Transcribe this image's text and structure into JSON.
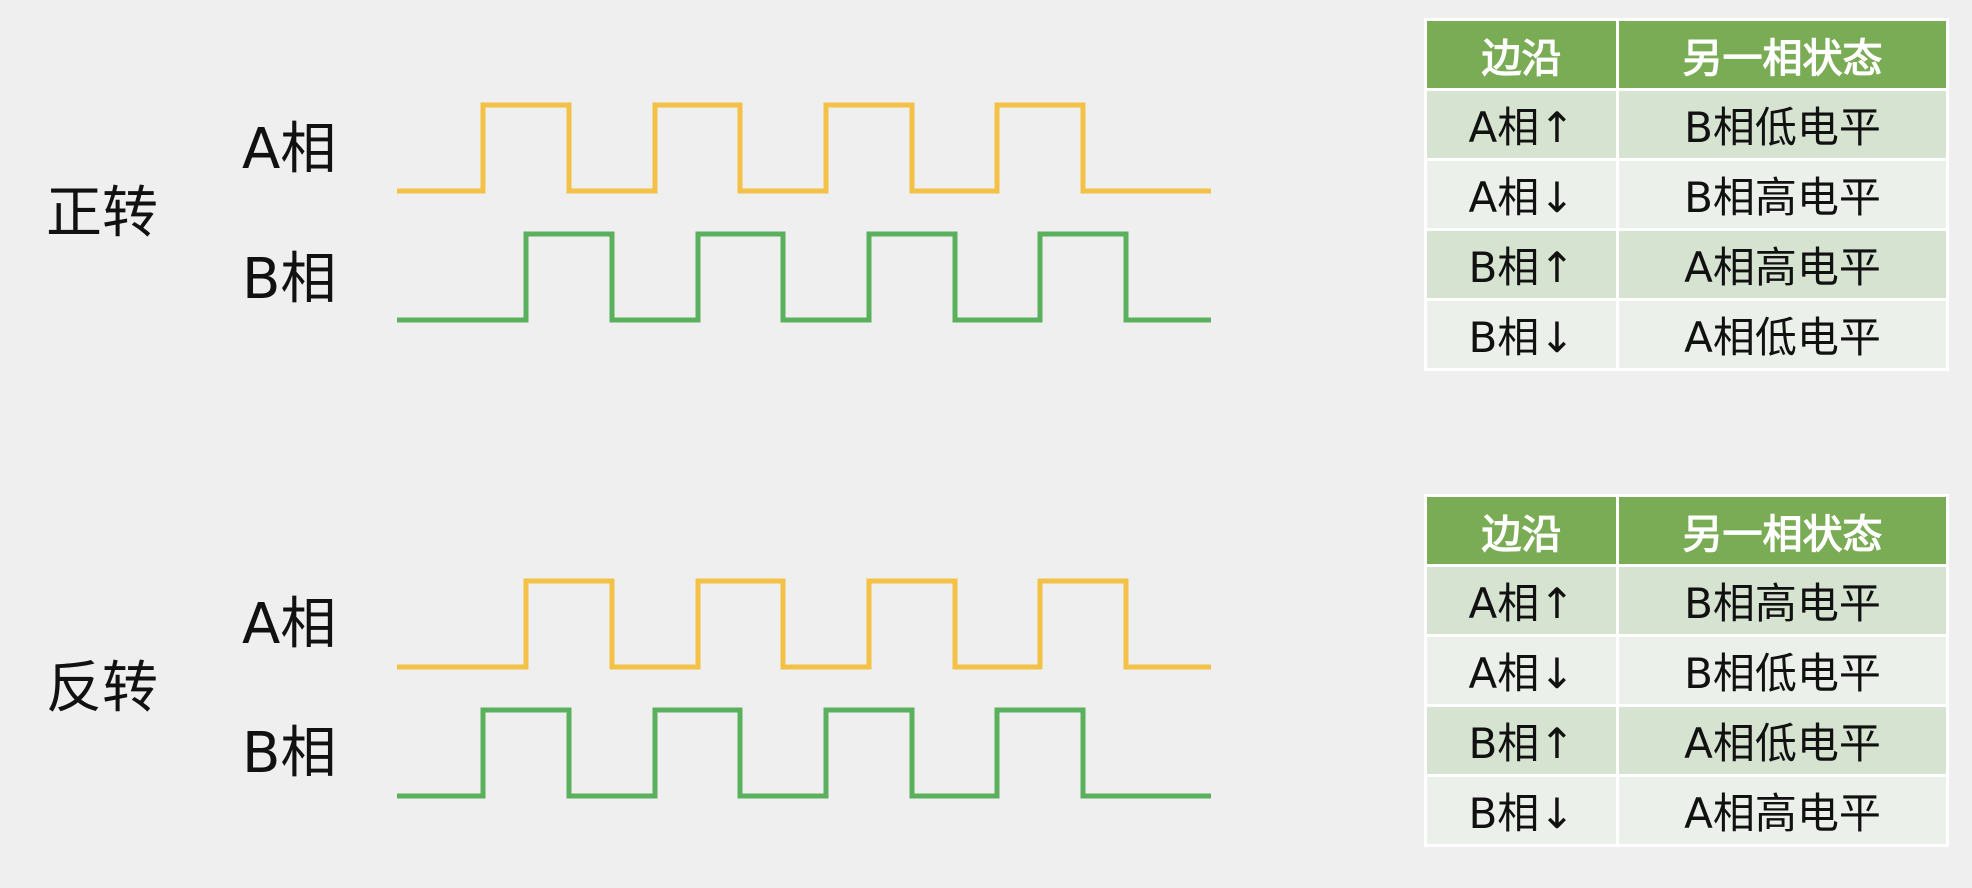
{
  "colors": {
    "phase_a": "#f2c146",
    "phase_b": "#5bb05d",
    "table_header": "#7aab55",
    "row_odd": "#d6e3d1",
    "row_even": "#ebf1ea"
  },
  "sections": [
    {
      "direction": "正转",
      "phase_a_label": "A相",
      "phase_b_label": "B相",
      "table": {
        "headers": [
          "边沿",
          "另一相状态"
        ],
        "rows": [
          [
            "A相↑",
            "B相低电平"
          ],
          [
            "A相↓",
            "B相高电平"
          ],
          [
            "B相↑",
            "A相高电平"
          ],
          [
            "B相↓",
            "A相低电平"
          ]
        ]
      }
    },
    {
      "direction": "反转",
      "phase_a_label": "A相",
      "phase_b_label": "B相",
      "table": {
        "headers": [
          "边沿",
          "另一相状态"
        ],
        "rows": [
          [
            "A相↑",
            "B相高电平"
          ],
          [
            "A相↓",
            "B相低电平"
          ],
          [
            "B相↑",
            "A相低电平"
          ],
          [
            "B相↓",
            "A相高电平"
          ]
        ]
      }
    }
  ]
}
